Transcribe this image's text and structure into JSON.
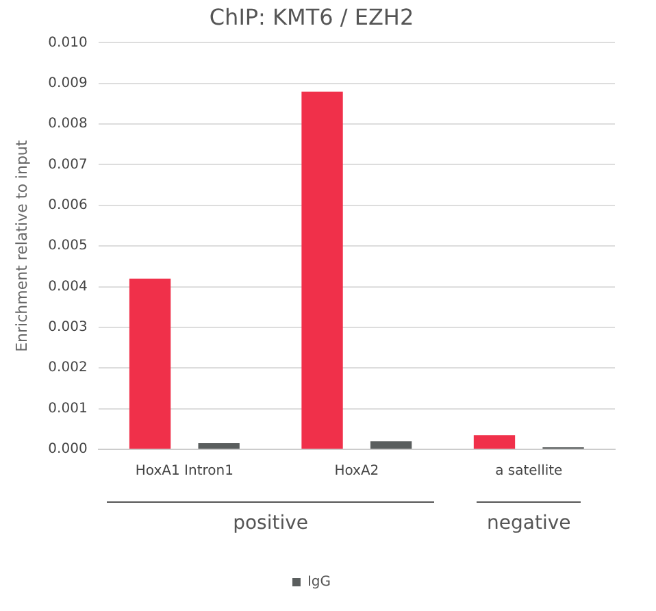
{
  "chart_data": {
    "type": "bar",
    "title": "ChIP: KMT6 / EZH2",
    "ylabel": "Enrichment relative to input",
    "categories": [
      "HoxA1 Intron1",
      "HoxA2",
      "a satellite"
    ],
    "series": [
      {
        "color": "#f0304a",
        "values": [
          0.0042,
          0.0088,
          0.00035
        ]
      },
      {
        "name": "IgG",
        "color": "#5a5e5e",
        "values": [
          0.00015,
          0.0002,
          5e-05
        ]
      }
    ],
    "ylim": [
      0,
      0.01
    ],
    "yticks": [
      {
        "value": 0,
        "label": "0.000"
      },
      {
        "value": 0.001,
        "label": "0.001"
      },
      {
        "value": 0.002,
        "label": "0.002"
      },
      {
        "value": 0.003,
        "label": "0.003"
      },
      {
        "value": 0.004,
        "label": "0.004"
      },
      {
        "value": 0.005,
        "label": "0.005"
      },
      {
        "value": 0.006,
        "label": "0.006"
      },
      {
        "value": 0.007,
        "label": "0.007"
      },
      {
        "value": 0.008,
        "label": "0.008"
      },
      {
        "value": 0.009,
        "label": "0.009"
      },
      {
        "value": 0.01,
        "label": "0.010"
      }
    ],
    "grid": "y",
    "legend": "bottom",
    "annotations": [
      "positive",
      "negative"
    ]
  }
}
